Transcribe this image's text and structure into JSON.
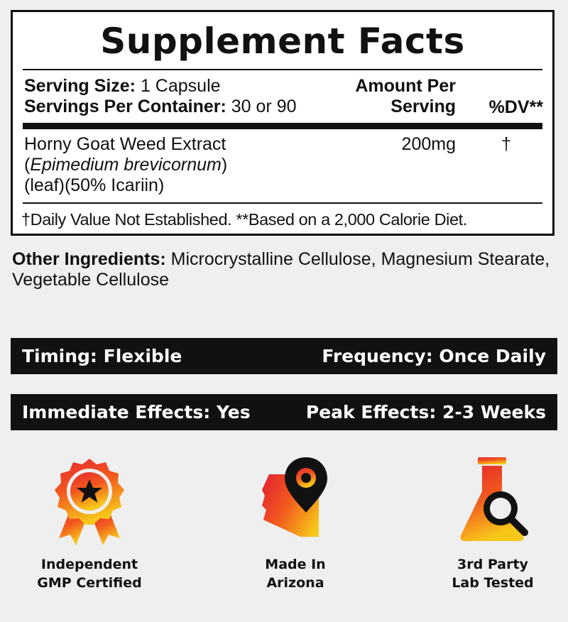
{
  "facts": {
    "title": "Supplement Facts",
    "serving_size_label": "Serving Size:",
    "serving_size_value": "1 Capsule",
    "servings_per_container_label": "Servings Per Container:",
    "servings_per_container_value": "30 or 90",
    "amount_header_line1": "Amount Per",
    "amount_header_line2": "Serving",
    "dv_header": "%DV**",
    "ingredient": {
      "name": "Horny Goat Weed Extract",
      "latin": "Epimedium brevicornum",
      "detail": "(leaf)(50% Icariin)",
      "amount": "200mg",
      "dv": "†"
    },
    "footnote": "†Daily Value Not Established. **Based on a 2,000 Calorie Diet."
  },
  "other_ingredients": {
    "label": "Other Ingredients:",
    "text": "Microcrystalline Cellulose, Magnesium Stearate, Vegetable Cellulose"
  },
  "bars": [
    {
      "left": "Timing: Flexible",
      "right": "Frequency: Once Daily"
    },
    {
      "left": "Immediate Effects: Yes",
      "right": "Peak Effects: 2-3 Weeks"
    }
  ],
  "badges": [
    {
      "icon": "award-ribbon-icon",
      "line1": "Independent",
      "line2": "GMP Certified"
    },
    {
      "icon": "arizona-location-icon",
      "line1": "Made In",
      "line2": "Arizona"
    },
    {
      "icon": "lab-flask-icon",
      "line1": "3rd Party",
      "line2": "Lab Tested"
    }
  ],
  "colors": {
    "gradient_top": "#e5272f",
    "gradient_mid": "#f25a1e",
    "gradient_bottom": "#f7c71a",
    "ink": "#111111",
    "background": "#efefef"
  }
}
